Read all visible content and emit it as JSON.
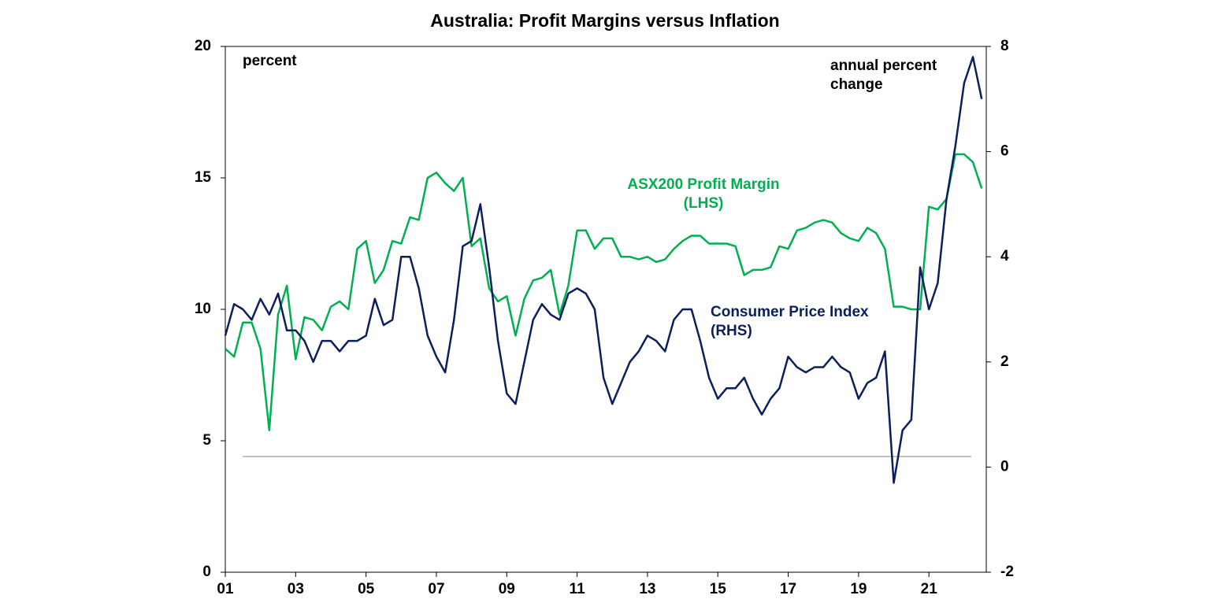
{
  "chart_data": {
    "type": "line",
    "title": "Australia: Profit Margins versus Inflation",
    "x": [
      1,
      1.25,
      1.5,
      1.75,
      2,
      2.25,
      2.5,
      2.75,
      3,
      3.25,
      3.5,
      3.75,
      4,
      4.25,
      4.5,
      4.75,
      5,
      5.25,
      5.5,
      5.75,
      6,
      6.25,
      6.5,
      6.75,
      7,
      7.25,
      7.5,
      7.75,
      8,
      8.25,
      8.5,
      8.75,
      9,
      9.25,
      9.5,
      9.75,
      10,
      10.25,
      10.5,
      10.75,
      11,
      11.25,
      11.5,
      11.75,
      12,
      12.25,
      12.5,
      12.75,
      13,
      13.25,
      13.5,
      13.75,
      14,
      14.25,
      14.5,
      14.75,
      15,
      15.25,
      15.5,
      15.75,
      16,
      16.25,
      16.5,
      16.75,
      17,
      17.25,
      17.5,
      17.75,
      18,
      18.25,
      18.5,
      18.75,
      19,
      19.25,
      19.5,
      19.75,
      20,
      20.25,
      20.5,
      20.75,
      21,
      21.25,
      21.5,
      21.75,
      22,
      22.25,
      22.5
    ],
    "series": [
      {
        "name": "ASX200 Profit Margin (LHS)",
        "color": "#00b050",
        "axis": "y",
        "values": [
          8.5,
          8.2,
          9.5,
          9.5,
          8.5,
          5.4,
          9.8,
          10.9,
          8.1,
          9.7,
          9.6,
          9.2,
          10.1,
          10.3,
          10.0,
          12.3,
          12.6,
          11.0,
          11.5,
          12.6,
          12.5,
          13.5,
          13.4,
          15.0,
          15.2,
          14.8,
          14.5,
          15.0,
          12.4,
          12.7,
          10.8,
          10.3,
          10.5,
          9.0,
          10.4,
          11.1,
          11.2,
          11.5,
          9.8,
          10.9,
          13.0,
          13.0,
          12.3,
          12.7,
          12.7,
          12.0,
          12.0,
          11.9,
          12.0,
          11.8,
          11.9,
          12.3,
          12.6,
          12.8,
          12.8,
          12.5,
          12.5,
          12.5,
          12.4,
          11.3,
          11.5,
          11.5,
          11.6,
          12.4,
          12.3,
          13.0,
          13.1,
          13.3,
          13.4,
          13.3,
          12.9,
          12.7,
          12.6,
          13.1,
          12.9,
          12.3,
          10.1,
          10.1,
          10.0,
          10.0,
          13.9,
          13.8,
          14.2,
          15.9,
          15.9,
          15.6,
          14.6
        ]
      },
      {
        "name": "Consumer Price Index (RHS)",
        "color": "#0a1f5c",
        "axis": "y2",
        "values": [
          2.5,
          3.1,
          3.0,
          2.8,
          3.2,
          2.9,
          3.3,
          2.6,
          2.6,
          2.4,
          2.0,
          2.4,
          2.4,
          2.2,
          2.4,
          2.4,
          2.5,
          3.2,
          2.7,
          2.8,
          4.0,
          4.0,
          3.4,
          2.5,
          2.1,
          1.8,
          2.8,
          4.2,
          4.3,
          5.0,
          3.8,
          2.4,
          1.4,
          1.2,
          2.0,
          2.8,
          3.1,
          2.9,
          2.8,
          3.3,
          3.4,
          3.3,
          3.0,
          1.7,
          1.2,
          1.6,
          2.0,
          2.2,
          2.5,
          2.4,
          2.2,
          2.8,
          3.0,
          3.0,
          2.4,
          1.7,
          1.3,
          1.5,
          1.5,
          1.7,
          1.3,
          1.0,
          1.3,
          1.5,
          2.1,
          1.9,
          1.8,
          1.9,
          1.9,
          2.1,
          1.9,
          1.8,
          1.3,
          1.6,
          1.7,
          2.2,
          -0.3,
          0.7,
          0.9,
          3.8,
          3.0,
          3.5,
          5.1,
          6.1,
          7.3,
          7.8,
          7.0
        ]
      }
    ],
    "xlim": [
      1,
      22.63
    ],
    "xticks": [
      {
        "value": 1,
        "label": "01"
      },
      {
        "value": 3,
        "label": "03"
      },
      {
        "value": 5,
        "label": "05"
      },
      {
        "value": 7,
        "label": "07"
      },
      {
        "value": 9,
        "label": "09"
      },
      {
        "value": 11,
        "label": "11"
      },
      {
        "value": 13,
        "label": "13"
      },
      {
        "value": 15,
        "label": "15"
      },
      {
        "value": 17,
        "label": "17"
      },
      {
        "value": 19,
        "label": "19"
      },
      {
        "value": 21,
        "label": "21"
      }
    ],
    "ylim": [
      0,
      20
    ],
    "yticks": [
      0,
      5,
      10,
      15,
      20
    ],
    "y2lim": [
      -2,
      8
    ],
    "y2ticks": [
      -2,
      0,
      2,
      4,
      6,
      8
    ],
    "reference_line": {
      "value": 4.4,
      "from": 1.5,
      "to": 22.2,
      "color": "#808080"
    },
    "annotations": [
      "percent",
      "annual percent change"
    ],
    "grid": false
  }
}
